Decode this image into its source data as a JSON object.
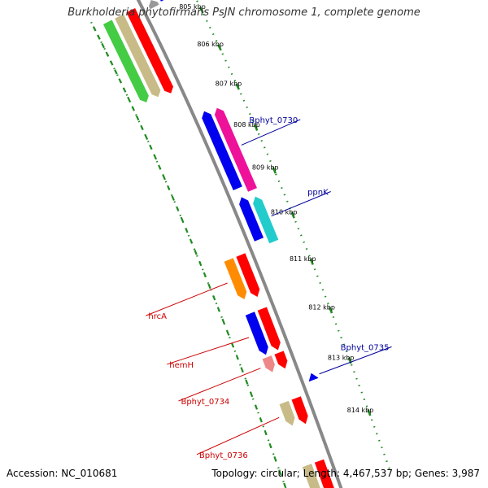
{
  "title": "Burkholderia phytofirmans PsJN chromosome 1, complete genome",
  "footer": {
    "accession": "Accession: NC_010681",
    "topology": "Topology: circular; Length: 4,467,537 bp; Genes: 3,987"
  },
  "colors": {
    "backbone": "#888888",
    "ticks": "#228B22",
    "red": "#ff0000",
    "blue": "#0000ee",
    "magenta": "#ee1199",
    "cyan": "#22cccc",
    "orange": "#ff8c00",
    "khaki": "#c8bb88",
    "pink": "#ee8888",
    "green": "#44cc44",
    "gray": "#999999",
    "label_left": "#000099",
    "label_right": "#cc0000"
  },
  "axis": {
    "unit": "kbp",
    "ticks": [
      {
        "kbp": 805,
        "label": "805 kbp"
      },
      {
        "kbp": 806,
        "label": "806 kbp"
      },
      {
        "kbp": 807,
        "label": "807 kbp"
      },
      {
        "kbp": 808,
        "label": "808 kbp"
      },
      {
        "kbp": 809,
        "label": "809 kbp"
      },
      {
        "kbp": 810,
        "label": "810 kbp"
      },
      {
        "kbp": 811,
        "label": "811 kbp"
      },
      {
        "kbp": 812,
        "label": "812 kbp"
      },
      {
        "kbp": 813,
        "label": "813 kbp"
      },
      {
        "kbp": 814,
        "label": "814 kbp"
      }
    ]
  },
  "genes": [
    {
      "name": "green-track-gene",
      "start": 804.2,
      "end": 806.45,
      "track": 3,
      "color": "green"
    },
    {
      "name": "khaki-track-gene",
      "start": 804.2,
      "end": 806.45,
      "track": 2,
      "color": "khaki"
    },
    {
      "name": "red-track-gene-upper",
      "start": 804.2,
      "end": 806.5,
      "track": 1,
      "color": "red"
    },
    {
      "name": "gray-track-gene",
      "start": 804.2,
      "end": 804.4,
      "track": -1,
      "color": "gray"
    },
    {
      "name": "blue-track-gene-top",
      "start": 804.2,
      "end": 804.35,
      "track": -2,
      "color": "blue"
    },
    {
      "name": "magenta-gene",
      "label": "Bphyt_0730",
      "start": 807.25,
      "end": 809.2,
      "track": -2,
      "color": "magenta"
    },
    {
      "name": "blue-gene-a",
      "start": 807.2,
      "end": 809.05,
      "track": -1,
      "color": "blue"
    },
    {
      "name": "cyan-gene",
      "label": "ppnK",
      "start": 809.35,
      "end": 810.35,
      "track": -2,
      "color": "cyan"
    },
    {
      "name": "blue-gene-b",
      "start": 809.25,
      "end": 810.2,
      "track": -1,
      "color": "blue"
    },
    {
      "name": "red-gene-a",
      "start": 810.35,
      "end": 811.25,
      "track": 1,
      "color": "red"
    },
    {
      "name": "orange-gene",
      "label": "hrcA",
      "start": 810.35,
      "end": 811.2,
      "track": 2,
      "color": "orange"
    },
    {
      "name": "red-gene-b",
      "start": 811.5,
      "end": 812.35,
      "track": 1,
      "color": "red"
    },
    {
      "name": "blue-gene-c",
      "label": "hemH",
      "start": 811.5,
      "end": 812.35,
      "track": 2,
      "color": "blue"
    },
    {
      "name": "red-gene-c",
      "start": 812.4,
      "end": 812.72,
      "track": 1,
      "color": "red"
    },
    {
      "name": "pink-gene",
      "label": "Bphyt_0734",
      "start": 812.4,
      "end": 812.7,
      "track": 2,
      "color": "pink"
    },
    {
      "name": "blue-small-gene",
      "label": "Bphyt_0735",
      "start": 812.97,
      "end": 813.1,
      "track": -1,
      "color": "blue"
    },
    {
      "name": "red-gene-d",
      "start": 813.3,
      "end": 813.8,
      "track": 1,
      "color": "red"
    },
    {
      "name": "khaki-gene-lower",
      "label": "Bphyt_0736",
      "start": 813.3,
      "end": 813.75,
      "track": 2,
      "color": "khaki"
    },
    {
      "name": "red-gene-e",
      "start": 814.5,
      "end": 815.2,
      "track": 1,
      "color": "red"
    },
    {
      "name": "khaki-gene-bottom",
      "start": 814.5,
      "end": 815.2,
      "track": 2,
      "color": "khaki"
    }
  ],
  "labels": [
    {
      "text": "Bphyt_0730",
      "gene": "magenta-gene",
      "side": "left"
    },
    {
      "text": "ppnK",
      "gene": "cyan-gene",
      "side": "left"
    },
    {
      "text": "Bphyt_0735",
      "gene": "blue-small-gene",
      "side": "left"
    },
    {
      "text": "hrcA",
      "gene": "orange-gene",
      "side": "right"
    },
    {
      "text": "hemH",
      "gene": "blue-gene-c",
      "side": "right"
    },
    {
      "text": "Bphyt_0734",
      "gene": "pink-gene",
      "side": "right"
    },
    {
      "text": "Bphyt_0736",
      "gene": "khaki-gene-lower",
      "side": "right"
    }
  ]
}
